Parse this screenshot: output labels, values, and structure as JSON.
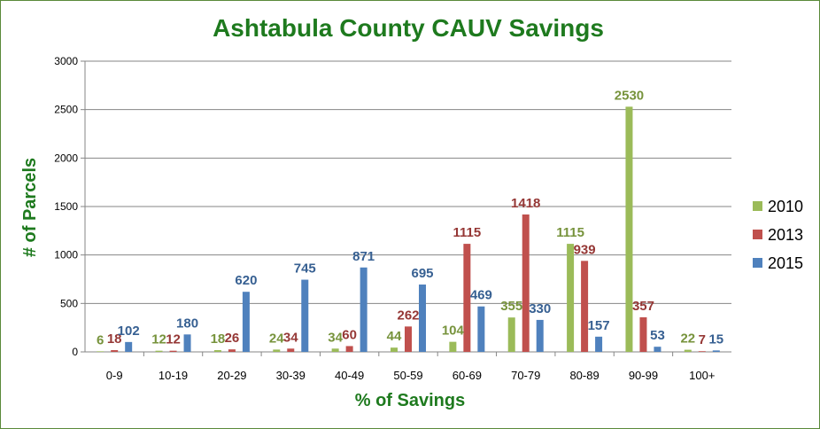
{
  "chart_data": {
    "type": "bar",
    "title": "Ashtabula County CAUV Savings",
    "xlabel": "% of Savings",
    "ylabel": "# of Parcels",
    "ylim": [
      0,
      3000
    ],
    "yticks": [
      "0",
      "500",
      "1000",
      "1500",
      "2000",
      "2500",
      "3000"
    ],
    "categories": [
      "0-9",
      "10-19",
      "20-29",
      "30-39",
      "40-49",
      "50-59",
      "60-69",
      "70-79",
      "80-89",
      "90-99",
      "100+"
    ],
    "series": [
      {
        "name": "2010",
        "color": "#9bbb59",
        "label_color": "#77933c",
        "values": [
          6,
          12,
          18,
          24,
          34,
          44,
          104,
          355,
          1115,
          2530,
          22
        ]
      },
      {
        "name": "2013",
        "color": "#c0504d",
        "label_color": "#953735",
        "values": [
          18,
          12,
          26,
          34,
          60,
          262,
          1115,
          1418,
          939,
          357,
          7
        ]
      },
      {
        "name": "2015",
        "color": "#4f81bd",
        "label_color": "#376092",
        "values": [
          102,
          180,
          620,
          745,
          871,
          695,
          469,
          330,
          157,
          53,
          15
        ]
      }
    ],
    "grid": true,
    "legend_position": "right"
  }
}
